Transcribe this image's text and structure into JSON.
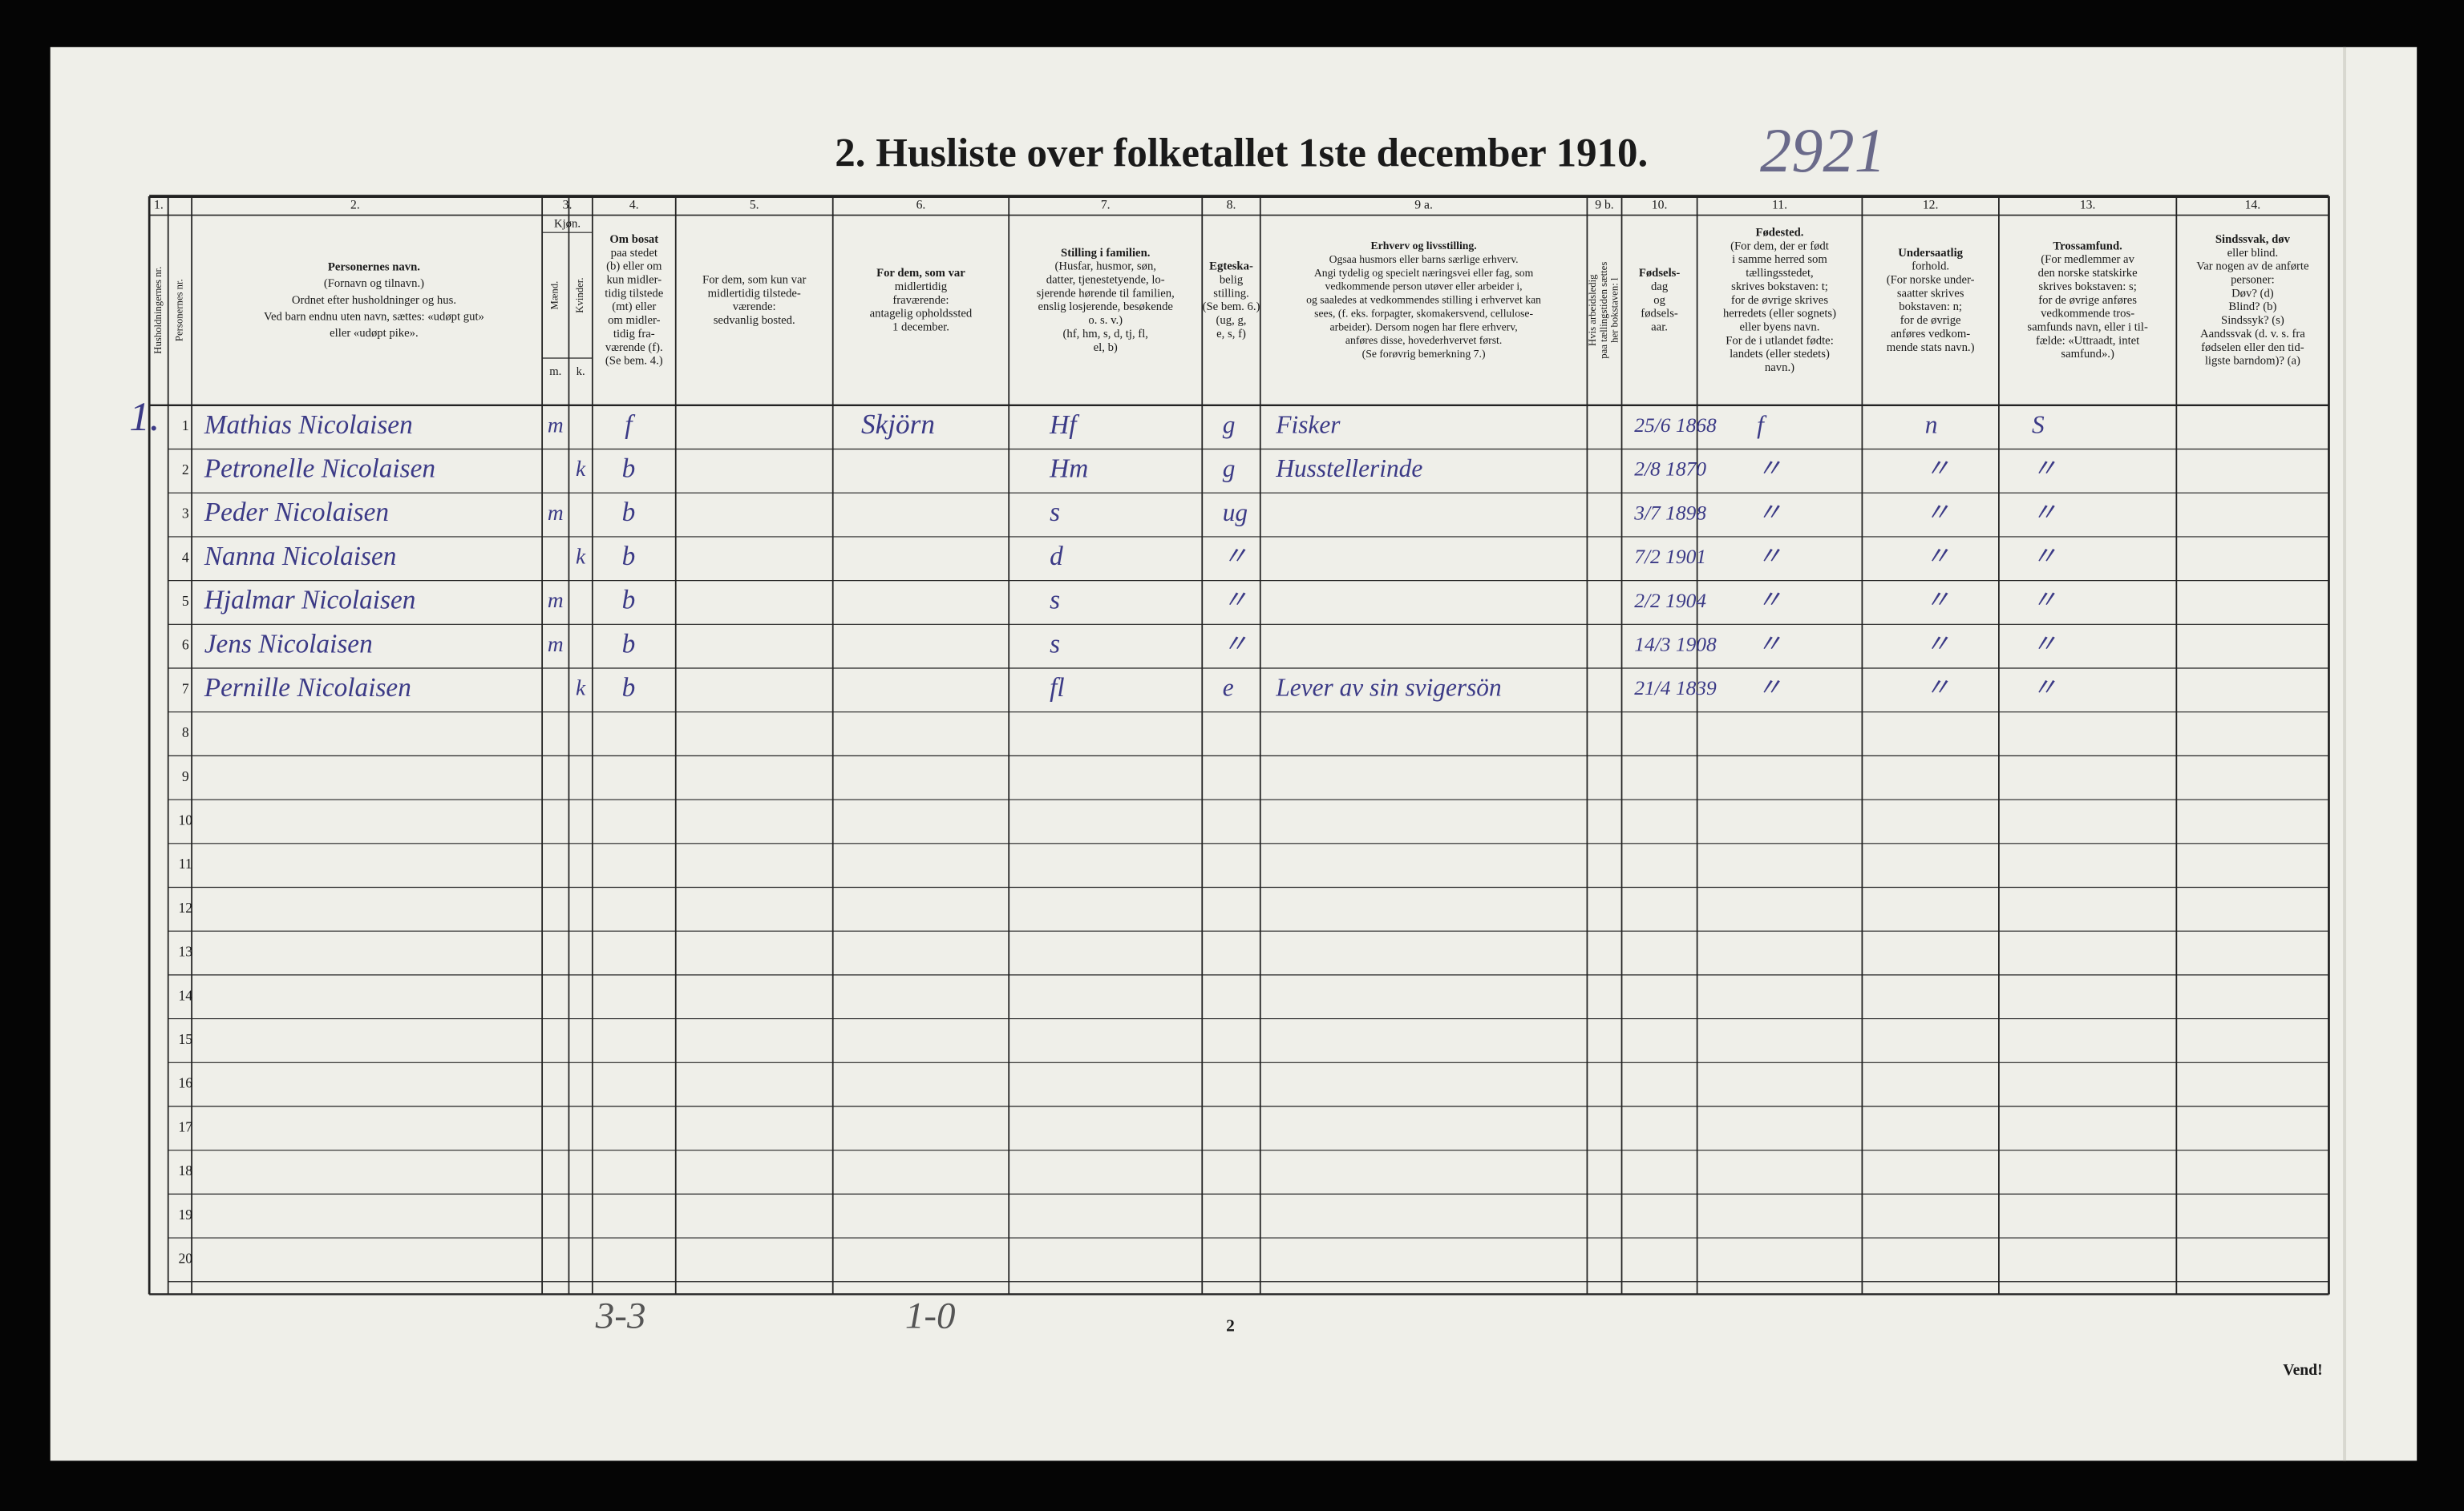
{
  "title": "2. Husliste over folketallet 1ste december 1910.",
  "archive_number": "2921",
  "household_mark": "1.",
  "person_nr_header": "Personernes nr.",
  "sex_header": {
    "title": "Kjøn.",
    "male": "Mænd.",
    "female": "Kvinder.",
    "m": "m.",
    "k": "k."
  },
  "columns": [
    {
      "number": "1.",
      "lines": [
        "Husholdningernes nr."
      ]
    },
    {
      "number": "2.",
      "lines": [
        "Personernes navn.",
        "(Fornavn og tilnavn.)",
        "Ordnet efter husholdninger og hus.",
        "Ved barn endnu uten navn, sættes: «udøpt gut»",
        "eller «udøpt pike»."
      ]
    },
    {
      "number": "3.",
      "lines": []
    },
    {
      "number": "4.",
      "lines": [
        "Om bosat",
        "paa stedet",
        "(b) eller om",
        "kun midler-",
        "tidig tilstede",
        "(mt) eller",
        "om midler-",
        "tidig fra-",
        "værende (f).",
        "(Se bem. 4.)"
      ]
    },
    {
      "number": "5.",
      "lines": [
        "For dem, som kun var",
        "midlertidig tilstede-",
        "værende:",
        "sedvanlig bosted."
      ]
    },
    {
      "number": "6.",
      "lines": [
        "For dem, som var",
        "midlertidig",
        "fraværende:",
        "antagelig opholdssted",
        "1 december."
      ]
    },
    {
      "number": "7.",
      "lines": [
        "Stilling i familien.",
        "(Husfar, husmor, søn,",
        "datter, tjenestetyende, lo-",
        "sjerende hørende til familien,",
        "enslig losjerende, besøkende",
        "o. s. v.)",
        "(hf, hm, s, d, tj, fl,",
        "el, b)"
      ]
    },
    {
      "number": "8.",
      "lines": [
        "Egteska-",
        "belig",
        "stilling.",
        "(Se bem. 6.)",
        "(ug, g,",
        "e, s, f)"
      ]
    },
    {
      "number": "9 a.",
      "lines": [
        "Erhverv og livsstilling.",
        "Ogsaa husmors eller barns særlige erhverv.",
        "Angi tydelig og specielt næringsvei eller fag, som",
        "vedkommende person utøver eller arbeider i,",
        "og saaledes at vedkommendes stilling i erhvervet kan",
        "sees, (f. eks. forpagter, skomakersvend, cellulose-",
        "arbeider). Dersom nogen har flere erhverv,",
        "anføres disse, hovederhvervet først.",
        "(Se forøvrig bemerkning 7.)"
      ]
    },
    {
      "number": "9 b.",
      "lines": [
        "Hvis arbeidsledig",
        "paa tællingstiden sættes",
        "her bokstaven: l"
      ]
    },
    {
      "number": "10.",
      "lines": [
        "Fødsels-",
        "dag",
        "og",
        "fødsels-",
        "aar."
      ]
    },
    {
      "number": "11.",
      "lines": [
        "Fødested.",
        "(For dem, der er født",
        "i samme herred som",
        "tællingsstedet,",
        "skrives bokstaven: t;",
        "for de øvrige skrives",
        "herredets (eller sognets)",
        "eller byens navn.",
        "For de i utlandet fødte:",
        "landets (eller stedets)",
        "navn.)"
      ]
    },
    {
      "number": "12.",
      "lines": [
        "Undersaatlig",
        "forhold.",
        "(For norske under-",
        "saatter skrives",
        "bokstaven: n;",
        "for de øvrige",
        "anføres vedkom-",
        "mende stats navn.)"
      ]
    },
    {
      "number": "13.",
      "lines": [
        "Trossamfund.",
        "(For medlemmer av",
        "den norske statskirke",
        "skrives bokstaven: s;",
        "for de øvrige anføres",
        "vedkommende tros-",
        "samfunds navn, eller i til-",
        "fælde: «Uttraadt, intet",
        "samfund».)"
      ]
    },
    {
      "number": "14.",
      "lines": [
        "Sindssvak, døv",
        "eller blind.",
        "Var nogen av de anførte",
        "personer:",
        "Døv? (d)",
        "Blind? (b)",
        "Sindssyk? (s)",
        "Aandssvak (d. v. s. fra",
        "fødselen eller den tid-",
        "ligste barndom)? (a)"
      ]
    }
  ],
  "row_numbers": [
    "1",
    "2",
    "3",
    "4",
    "5",
    "6",
    "7",
    "8",
    "9",
    "10",
    "11",
    "12",
    "13",
    "14",
    "15",
    "16",
    "17",
    "18",
    "19",
    "20"
  ],
  "entries": [
    {
      "name": "Mathias Nicolaisen",
      "sex": "m",
      "residence": "f",
      "temporary_location": "Skjörn",
      "family_position": "Hf",
      "marital_status": "g",
      "occupation": "Fisker",
      "birth_date": "25/6 1868",
      "birthplace": "f",
      "citizenship": "n",
      "religion": "S"
    },
    {
      "name": "Petronelle Nicolaisen",
      "sex": "k",
      "residence": "b",
      "family_position": "Hm",
      "marital_status": "g",
      "occupation": "Husstellerinde",
      "birth_date": "2/8 1870",
      "birthplace": "〃",
      "citizenship": "〃",
      "religion": "〃"
    },
    {
      "name": "Peder Nicolaisen",
      "sex": "m",
      "residence": "b",
      "family_position": "s",
      "marital_status": "ug",
      "birth_date": "3/7 1898",
      "birthplace": "〃",
      "citizenship": "〃",
      "religion": "〃"
    },
    {
      "name": "Nanna Nicolaisen",
      "sex": "k",
      "residence": "b",
      "family_position": "d",
      "marital_status": "〃",
      "birth_date": "7/2 1901",
      "birthplace": "〃",
      "citizenship": "〃",
      "religion": "〃"
    },
    {
      "name": "Hjalmar Nicolaisen",
      "sex": "m",
      "residence": "b",
      "family_position": "s",
      "marital_status": "〃",
      "birth_date": "2/2 1904",
      "birthplace": "〃",
      "citizenship": "〃",
      "religion": "〃"
    },
    {
      "name": "Jens Nicolaisen",
      "sex": "m",
      "residence": "b",
      "family_position": "s",
      "marital_status": "〃",
      "birth_date": "14/3 1908",
      "birthplace": "〃",
      "citizenship": "〃",
      "religion": "〃"
    },
    {
      "name": "Pernille Nicolaisen",
      "sex": "k",
      "residence": "b",
      "family_position": "fl",
      "marital_status": "e",
      "occupation": "Lever av sin svigersön",
      "birth_date": "21/4 1839",
      "birthplace": "〃",
      "citizenship": "〃",
      "religion": "〃"
    }
  ],
  "footer": {
    "tally_present": "3-3",
    "tally_absent": "1-0",
    "page_number": "2",
    "turn": "Vend!"
  }
}
